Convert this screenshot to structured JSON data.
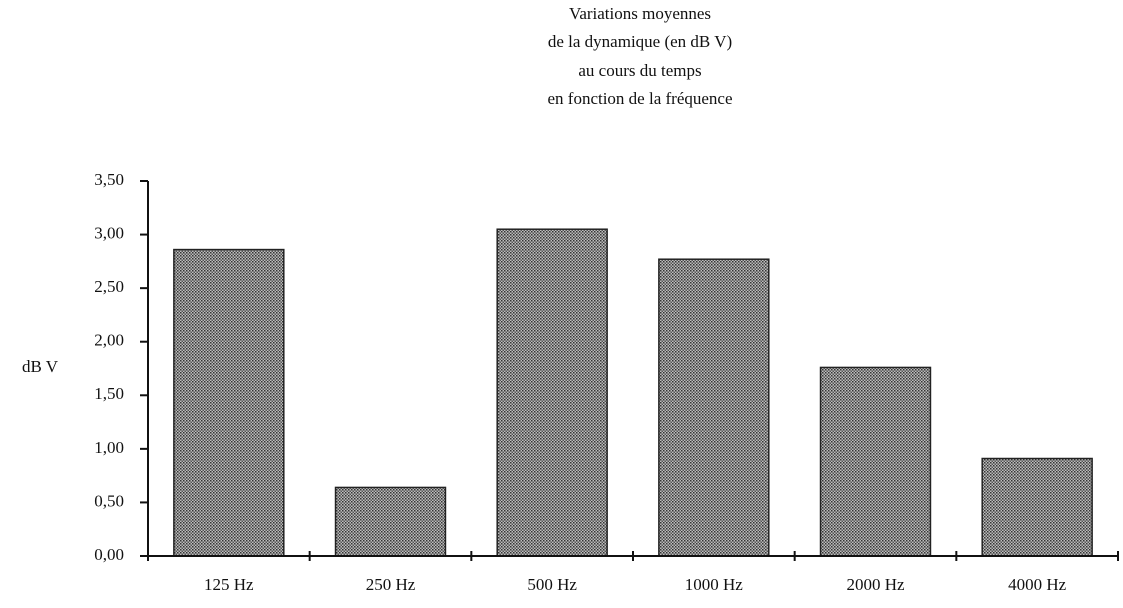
{
  "chart_data": {
    "type": "bar",
    "title": [
      "Variations moyennes",
      "de la dynamique (en dB V)",
      "au cours du temps",
      "en fonction de la fréquence"
    ],
    "y_label": "dB V",
    "categories": [
      "125 Hz",
      "250 Hz",
      "500 Hz",
      "1000 Hz",
      "2000 Hz",
      "4000 Hz"
    ],
    "values": [
      2.86,
      0.64,
      3.05,
      2.77,
      1.76,
      0.91
    ],
    "color": "#8a8a8a",
    "ylim": [
      0,
      3.5
    ],
    "yticks": [
      {
        "value": 0,
        "label": "0,00"
      },
      {
        "value": 0.5,
        "label": "0,50"
      },
      {
        "value": 1,
        "label": "1,00"
      },
      {
        "value": 1.5,
        "label": "1,50"
      },
      {
        "value": 2,
        "label": "2,00"
      },
      {
        "value": 2.5,
        "label": "2,50"
      },
      {
        "value": 3,
        "label": "3,00"
      },
      {
        "value": 3.5,
        "label": "3,50"
      }
    ],
    "grid": false
  }
}
